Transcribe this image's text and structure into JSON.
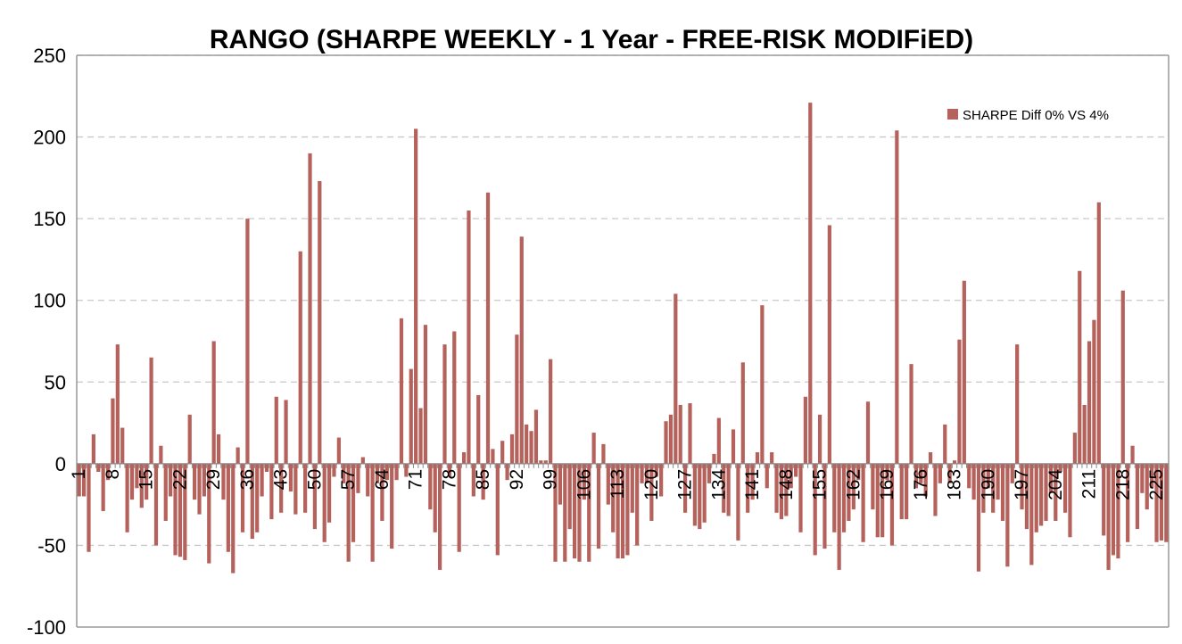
{
  "chart_data": {
    "type": "bar",
    "title": "RANGO (SHARPE WEEKLY - 1 Year - FREE-RISK MODIFiED)",
    "xlabel": "",
    "ylabel": "",
    "ylim": [
      -100,
      250
    ],
    "yticks": [
      "250",
      "200",
      "150",
      "100",
      "50",
      "0",
      "-50",
      "-100"
    ],
    "xticks": [
      "1",
      "8",
      "15",
      "22",
      "29",
      "36",
      "43",
      "50",
      "57",
      "64",
      "71",
      "78",
      "85",
      "92",
      "99",
      "106",
      "113",
      "120",
      "127",
      "134",
      "141",
      "148",
      "155",
      "162",
      "169",
      "176",
      "183",
      "190",
      "197",
      "204",
      "211",
      "218",
      "225"
    ],
    "grid": true,
    "legend_position": "top-right",
    "series": [
      {
        "name": "SHARPE Diff 0% VS 4%",
        "color": "#b5625c",
        "x": [
          1,
          2,
          3,
          4,
          5,
          6,
          7,
          8,
          9,
          10,
          11,
          12,
          13,
          14,
          15,
          16,
          17,
          18,
          19,
          20,
          21,
          22,
          23,
          24,
          25,
          26,
          27,
          28,
          29,
          30,
          31,
          32,
          33,
          34,
          35,
          36,
          37,
          38,
          39,
          40,
          41,
          42,
          43,
          44,
          45,
          46,
          47,
          48,
          49,
          50,
          51,
          52,
          53,
          54,
          55,
          56,
          57,
          58,
          59,
          60,
          61,
          62,
          63,
          64,
          65,
          66,
          67,
          68,
          69,
          70,
          71,
          72,
          73,
          74,
          75,
          76,
          77,
          78,
          79,
          80,
          81,
          82,
          83,
          84,
          85,
          86,
          87,
          88,
          89,
          90,
          91,
          92,
          93,
          94,
          95,
          96,
          97,
          98,
          99,
          100,
          101,
          102,
          103,
          104,
          105,
          106,
          107,
          108,
          109,
          110,
          111,
          112,
          113,
          114,
          115,
          116,
          117,
          118,
          119,
          120,
          121,
          122,
          123,
          124,
          125,
          126,
          127,
          128,
          129,
          130,
          131,
          132,
          133,
          134,
          135,
          136,
          137,
          138,
          139,
          140,
          141,
          142,
          143,
          144,
          145,
          146,
          147,
          148,
          149,
          150,
          151,
          152,
          153,
          154,
          155,
          156,
          157,
          158,
          159,
          160,
          161,
          162,
          163,
          164,
          165,
          166,
          167,
          168,
          169,
          170,
          171,
          172,
          173,
          174,
          175,
          176,
          177,
          178,
          179,
          180,
          181,
          182,
          183,
          184,
          185,
          186,
          187,
          188,
          189,
          190,
          191,
          192,
          193,
          194,
          195,
          196,
          197,
          198,
          199,
          200,
          201,
          202,
          203,
          204,
          205,
          206,
          207,
          208,
          209,
          210,
          211,
          212,
          213,
          214,
          215,
          216,
          217,
          218,
          219,
          220,
          221,
          222,
          223,
          224,
          225,
          226,
          227
        ],
        "values": [
          -20,
          -20,
          -54,
          18,
          -5,
          -29,
          -10,
          40,
          73,
          22,
          -42,
          -22,
          -15,
          -27,
          -22,
          65,
          -50,
          11,
          -35,
          -20,
          -56,
          -57,
          -59,
          30,
          -22,
          -31,
          -20,
          -61,
          75,
          18,
          -22,
          -54,
          -67,
          10,
          -42,
          150,
          -46,
          -42,
          -20,
          -5,
          -34,
          41,
          -30,
          39,
          -17,
          -31,
          130,
          -30,
          190,
          -40,
          173,
          -48,
          -36,
          -8,
          16,
          -12,
          -60,
          -48,
          -18,
          4,
          -20,
          -60,
          -12,
          -35,
          -10,
          -52,
          -10,
          89,
          -8,
          58,
          205,
          34,
          85,
          -28,
          -42,
          -65,
          73,
          -8,
          81,
          -54,
          7,
          155,
          -20,
          42,
          -22,
          166,
          9,
          -56,
          14,
          -10,
          18,
          79,
          139,
          24,
          20,
          33,
          2,
          2,
          64,
          -60,
          -25,
          -60,
          -40,
          -58,
          -60,
          -22,
          -60,
          19,
          -52,
          12,
          -25,
          -42,
          -58,
          -58,
          -56,
          -30,
          -50,
          -12,
          -12,
          -35,
          -8,
          -20,
          26,
          30,
          104,
          36,
          -30,
          37,
          -38,
          -40,
          -36,
          -12,
          6,
          28,
          -30,
          -32,
          21,
          -47,
          62,
          -30,
          -22,
          7,
          97,
          -15,
          7,
          -30,
          -34,
          -32,
          -15,
          -8,
          -42,
          41,
          221,
          -56,
          30,
          -52,
          146,
          -42,
          -65,
          -42,
          -35,
          -28,
          -10,
          -48,
          38,
          -28,
          -45,
          -45,
          -10,
          -50,
          204,
          -34,
          -34,
          61,
          -15,
          -12,
          -20,
          7,
          -32,
          -12,
          24,
          -12,
          2,
          76,
          112,
          -15,
          -22,
          -66,
          -30,
          -15,
          -30,
          -22,
          -35,
          -63,
          -12,
          73,
          -28,
          -40,
          -62,
          -42,
          -38,
          -35,
          -18,
          -35,
          -5,
          -30,
          -45,
          19,
          118,
          36,
          75,
          88,
          160,
          -44,
          -65,
          -56,
          -58,
          106,
          -48,
          11,
          -40,
          -18,
          -28,
          -15,
          -48,
          -47,
          -48
        ]
      }
    ]
  }
}
